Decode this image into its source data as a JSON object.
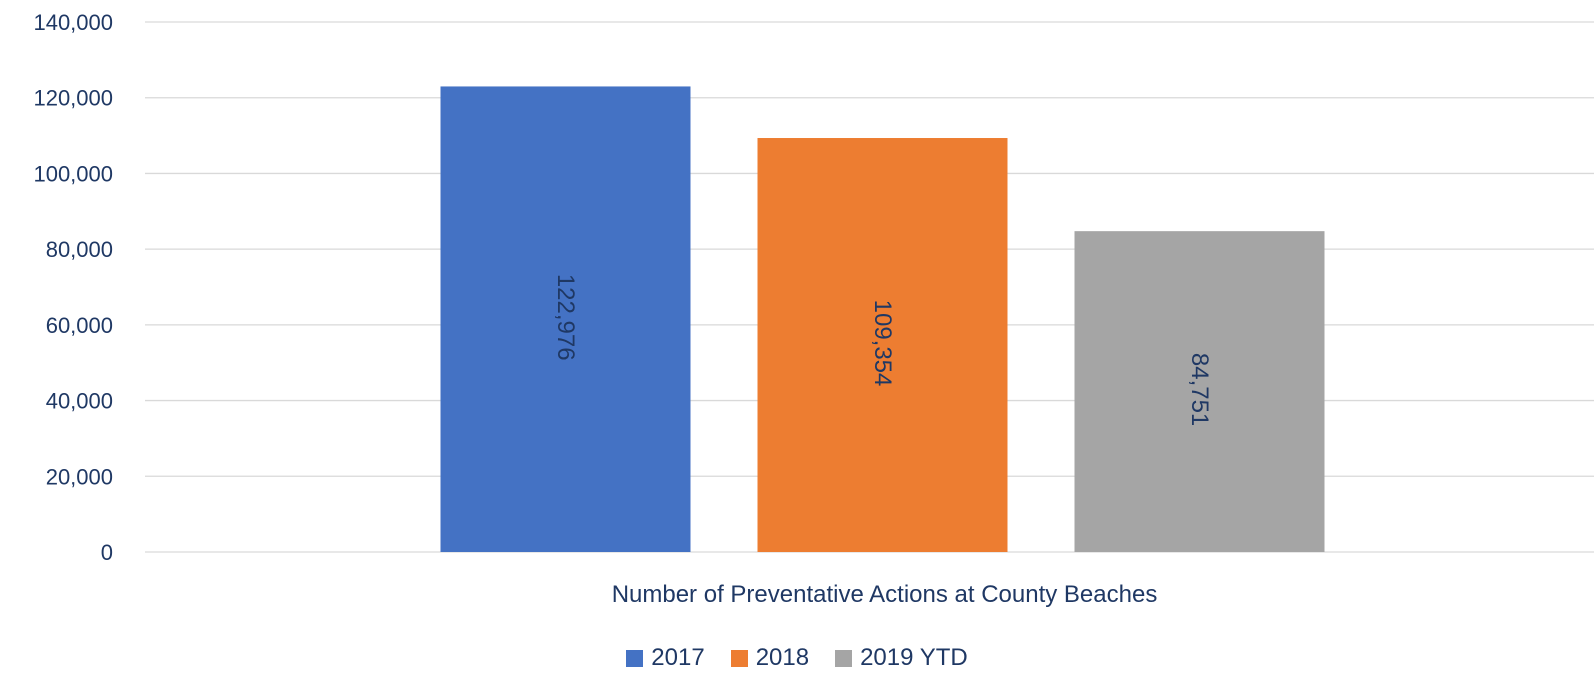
{
  "chart_data": {
    "type": "bar",
    "title": "",
    "xlabel": "",
    "ylabel": "",
    "categories": [
      "Number of Preventative Actions at County Beaches"
    ],
    "series": [
      {
        "name": "2017",
        "values": [
          122976
        ],
        "label": "122,976",
        "color": "#4472C4"
      },
      {
        "name": "2018",
        "values": [
          109354
        ],
        "label": "109,354",
        "color": "#ED7D31"
      },
      {
        "name": "2019 YTD",
        "values": [
          84751
        ],
        "label": "84,751",
        "color": "#A5A5A5"
      }
    ],
    "ylim": [
      0,
      140000
    ],
    "yticks": [
      0,
      20000,
      40000,
      60000,
      80000,
      100000,
      120000,
      140000
    ],
    "ytick_labels": [
      "0",
      "20,000",
      "40,000",
      "60,000",
      "80,000",
      "100,000",
      "120,000",
      "140,000"
    ],
    "grid": true,
    "legend_position": "bottom",
    "data_label_orientation": "rotated",
    "text_color": "#1F3864",
    "gridline_color": "#D9D9D9"
  }
}
